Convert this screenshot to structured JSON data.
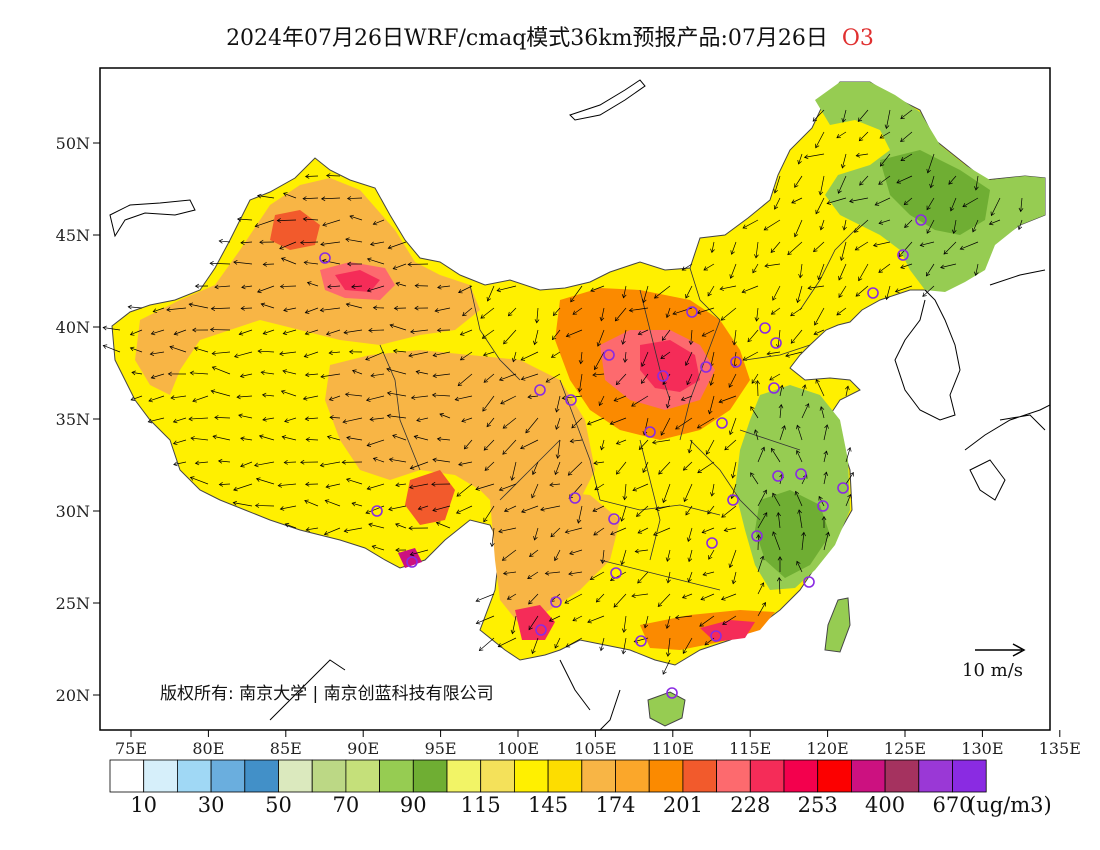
{
  "title": {
    "text": "2024年07月26日WRF/cmaq模式36km预报产品:07月26日",
    "species": "O3",
    "species_color": "#e03030"
  },
  "map": {
    "lon_ticks": [
      "75E",
      "80E",
      "85E",
      "90E",
      "95E",
      "100E",
      "105E",
      "110E",
      "115E",
      "120E",
      "125E",
      "130E",
      "135E"
    ],
    "lat_ticks": [
      "50N",
      "45N",
      "40N",
      "35N",
      "30N",
      "25N",
      "20N"
    ],
    "copyright": "版权所有: 南京大学 | 南京创蓝科技有限公司",
    "wind_scale_label": "10 m/s",
    "station_marker_color": "#8a2be2"
  },
  "legend": {
    "colors": [
      "#ffffff",
      "#d6effa",
      "#a0d8f5",
      "#6aaede",
      "#4290c8",
      "#dbe9be",
      "#bcd885",
      "#c5e07a",
      "#96cc52",
      "#6fae33",
      "#f2f466",
      "#f4e15a",
      "#fff000",
      "#fddd00",
      "#f8b545",
      "#fba72a",
      "#fb8a00",
      "#f25a2c",
      "#fd6a6e",
      "#f52c58",
      "#f3004d",
      "#fc0000",
      "#cc1180",
      "#a5325f",
      "#9a38d6",
      "#8a2be2"
    ],
    "labels": [
      "10",
      "30",
      "50",
      "70",
      "90",
      "115",
      "145",
      "174",
      "201",
      "228",
      "253",
      "400",
      "670"
    ],
    "unit": "(ug/m3)"
  }
}
